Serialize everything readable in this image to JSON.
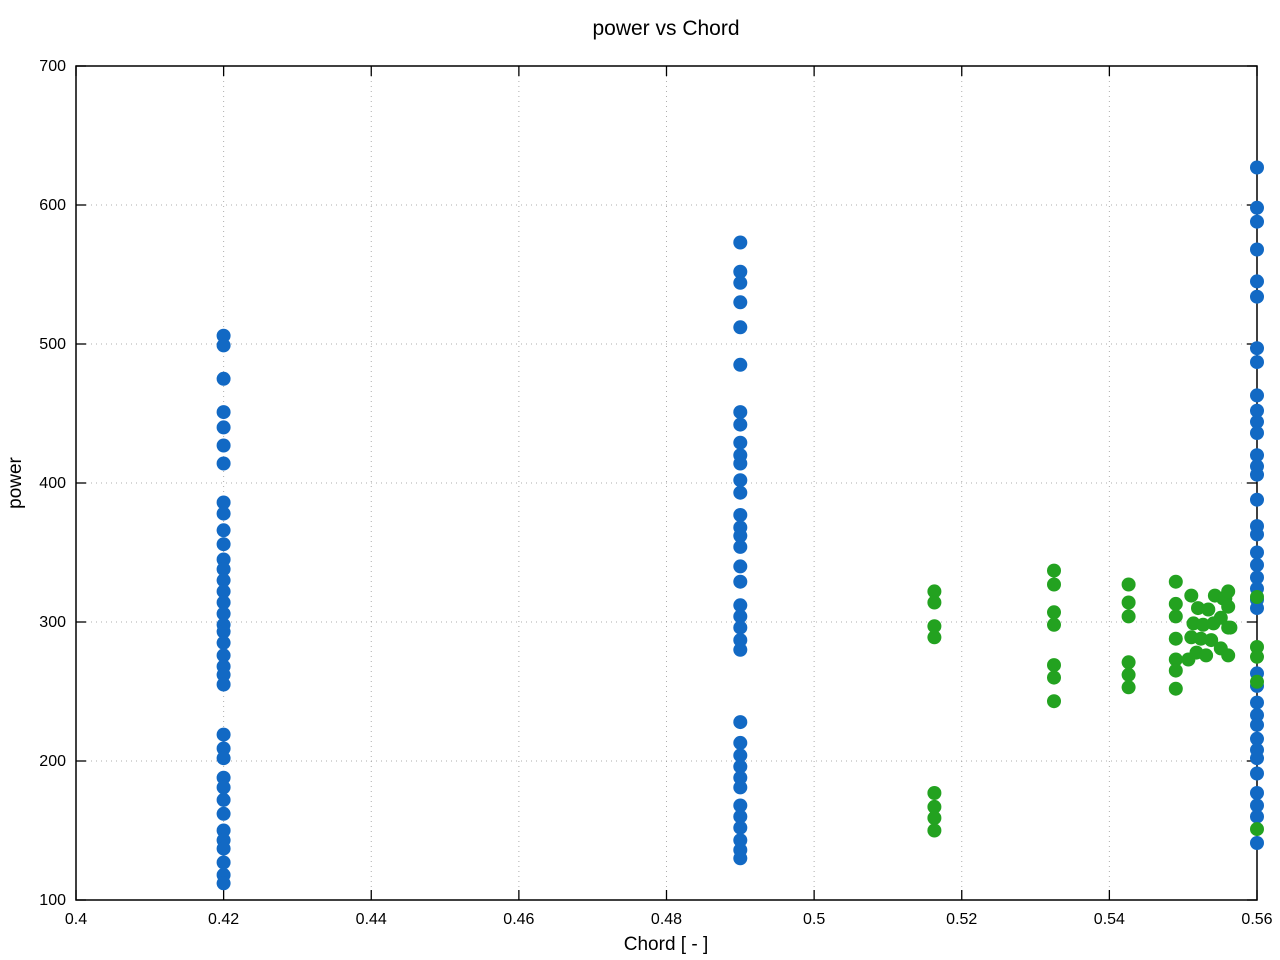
{
  "title": "power vs Chord",
  "chart_data": {
    "type": "scatter",
    "title": "power vs Chord",
    "xlabel": "Chord [ - ]",
    "ylabel": "power",
    "xlim": [
      0.4,
      0.56
    ],
    "ylim": [
      100,
      700
    ],
    "xticks": [
      0.4,
      0.42,
      0.44,
      0.46,
      0.48,
      0.5,
      0.52,
      0.54,
      0.56
    ],
    "xtick_labels": [
      "0.4",
      "0.42",
      "0.44",
      "0.46",
      "0.48",
      "0.5",
      "0.52",
      "0.54",
      "0.56"
    ],
    "yticks": [
      100,
      200,
      300,
      400,
      500,
      600,
      700
    ],
    "ytick_labels": [
      "100",
      "200",
      "300",
      "400",
      "500",
      "600",
      "700"
    ],
    "grid": true,
    "grid_style": "dotted",
    "legend": "none",
    "marker_diameter_px": 14,
    "series": [
      {
        "name": "series-1-blue",
        "color": "#1269c4",
        "points": [
          [
            0.42,
            506
          ],
          [
            0.42,
            499
          ],
          [
            0.42,
            475
          ],
          [
            0.42,
            451
          ],
          [
            0.42,
            440
          ],
          [
            0.42,
            427
          ],
          [
            0.42,
            414
          ],
          [
            0.42,
            386
          ],
          [
            0.42,
            378
          ],
          [
            0.42,
            366
          ],
          [
            0.42,
            356
          ],
          [
            0.42,
            345
          ],
          [
            0.42,
            338
          ],
          [
            0.42,
            330
          ],
          [
            0.42,
            322
          ],
          [
            0.42,
            314
          ],
          [
            0.42,
            306
          ],
          [
            0.42,
            298
          ],
          [
            0.42,
            293
          ],
          [
            0.42,
            285
          ],
          [
            0.42,
            276
          ],
          [
            0.42,
            268
          ],
          [
            0.42,
            262
          ],
          [
            0.42,
            255
          ],
          [
            0.42,
            219
          ],
          [
            0.42,
            209
          ],
          [
            0.42,
            202
          ],
          [
            0.42,
            188
          ],
          [
            0.42,
            181
          ],
          [
            0.42,
            172
          ],
          [
            0.42,
            162
          ],
          [
            0.42,
            150
          ],
          [
            0.42,
            143
          ],
          [
            0.42,
            137
          ],
          [
            0.42,
            127
          ],
          [
            0.42,
            118
          ],
          [
            0.42,
            112
          ],
          [
            0.49,
            573
          ],
          [
            0.49,
            552
          ],
          [
            0.49,
            544
          ],
          [
            0.49,
            530
          ],
          [
            0.49,
            512
          ],
          [
            0.49,
            485
          ],
          [
            0.49,
            451
          ],
          [
            0.49,
            442
          ],
          [
            0.49,
            429
          ],
          [
            0.49,
            420
          ],
          [
            0.49,
            414
          ],
          [
            0.49,
            402
          ],
          [
            0.49,
            393
          ],
          [
            0.49,
            377
          ],
          [
            0.49,
            368
          ],
          [
            0.49,
            362
          ],
          [
            0.49,
            354
          ],
          [
            0.49,
            340
          ],
          [
            0.49,
            329
          ],
          [
            0.49,
            312
          ],
          [
            0.49,
            304
          ],
          [
            0.49,
            296
          ],
          [
            0.49,
            287
          ],
          [
            0.49,
            280
          ],
          [
            0.49,
            228
          ],
          [
            0.49,
            213
          ],
          [
            0.49,
            204
          ],
          [
            0.49,
            196
          ],
          [
            0.49,
            188
          ],
          [
            0.49,
            181
          ],
          [
            0.49,
            168
          ],
          [
            0.49,
            160
          ],
          [
            0.49,
            152
          ],
          [
            0.49,
            143
          ],
          [
            0.49,
            136
          ],
          [
            0.49,
            130
          ],
          [
            0.56,
            627
          ],
          [
            0.56,
            598
          ],
          [
            0.56,
            588
          ],
          [
            0.56,
            568
          ],
          [
            0.56,
            545
          ],
          [
            0.56,
            534
          ],
          [
            0.56,
            497
          ],
          [
            0.56,
            487
          ],
          [
            0.56,
            463
          ],
          [
            0.56,
            452
          ],
          [
            0.56,
            444
          ],
          [
            0.56,
            436
          ],
          [
            0.56,
            420
          ],
          [
            0.56,
            412
          ],
          [
            0.56,
            406
          ],
          [
            0.56,
            388
          ],
          [
            0.56,
            369
          ],
          [
            0.56,
            363
          ],
          [
            0.56,
            350
          ],
          [
            0.56,
            341
          ],
          [
            0.56,
            332
          ],
          [
            0.56,
            324
          ],
          [
            0.56,
            316
          ],
          [
            0.56,
            310
          ],
          [
            0.56,
            263
          ],
          [
            0.56,
            254
          ],
          [
            0.56,
            242
          ],
          [
            0.56,
            233
          ],
          [
            0.56,
            226
          ],
          [
            0.56,
            216
          ],
          [
            0.56,
            208
          ],
          [
            0.56,
            202
          ],
          [
            0.56,
            191
          ],
          [
            0.56,
            177
          ],
          [
            0.56,
            168
          ],
          [
            0.56,
            160
          ],
          [
            0.56,
            141
          ]
        ]
      },
      {
        "name": "series-2-green",
        "color": "#23a220",
        "points": [
          [
            0.5163,
            322
          ],
          [
            0.5163,
            314
          ],
          [
            0.5163,
            297
          ],
          [
            0.5163,
            289
          ],
          [
            0.5163,
            177
          ],
          [
            0.5163,
            167
          ],
          [
            0.5163,
            159
          ],
          [
            0.5163,
            150
          ],
          [
            0.5325,
            337
          ],
          [
            0.5325,
            327
          ],
          [
            0.5325,
            307
          ],
          [
            0.5325,
            298
          ],
          [
            0.5325,
            269
          ],
          [
            0.5325,
            260
          ],
          [
            0.5325,
            243
          ],
          [
            0.5426,
            327
          ],
          [
            0.5426,
            314
          ],
          [
            0.5426,
            304
          ],
          [
            0.5426,
            271
          ],
          [
            0.5426,
            262
          ],
          [
            0.5426,
            253
          ],
          [
            0.549,
            329
          ],
          [
            0.549,
            313
          ],
          [
            0.549,
            304
          ],
          [
            0.549,
            288
          ],
          [
            0.549,
            273
          ],
          [
            0.549,
            265
          ],
          [
            0.549,
            252
          ],
          [
            0.5507,
            273
          ],
          [
            0.5511,
            319
          ],
          [
            0.5511,
            289
          ],
          [
            0.5514,
            299
          ],
          [
            0.5518,
            278
          ],
          [
            0.552,
            310
          ],
          [
            0.5524,
            288
          ],
          [
            0.5527,
            298
          ],
          [
            0.5531,
            276
          ],
          [
            0.5534,
            309
          ],
          [
            0.5538,
            287
          ],
          [
            0.5541,
            299
          ],
          [
            0.5543,
            319
          ],
          [
            0.5551,
            303
          ],
          [
            0.5551,
            281
          ],
          [
            0.5554,
            317
          ],
          [
            0.5557,
            317
          ],
          [
            0.5561,
            322
          ],
          [
            0.5561,
            311
          ],
          [
            0.5561,
            296
          ],
          [
            0.5561,
            276
          ],
          [
            0.5564,
            296
          ],
          [
            0.56,
            318
          ],
          [
            0.56,
            282
          ],
          [
            0.56,
            275
          ],
          [
            0.56,
            257
          ],
          [
            0.56,
            151
          ]
        ]
      }
    ]
  }
}
